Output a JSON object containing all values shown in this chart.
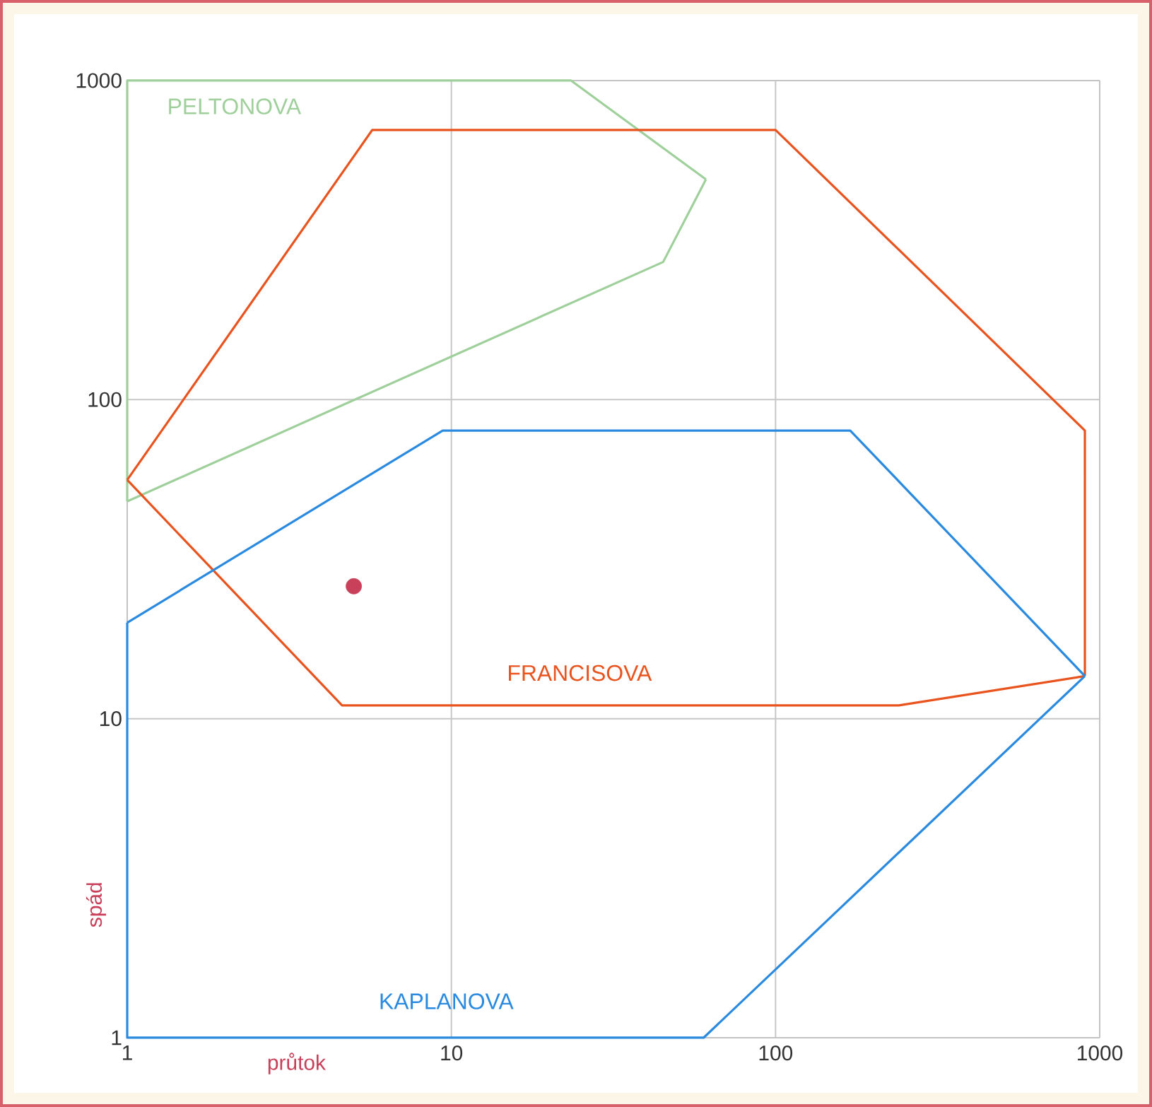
{
  "chart_data": {
    "type": "line",
    "xlabel": "průtok",
    "ylabel": "spád",
    "log": "xy",
    "grid": true,
    "xlim": [
      1,
      1000
    ],
    "ylim": [
      1,
      1000
    ],
    "xticks": [
      1,
      10,
      100,
      1000
    ],
    "yticks": [
      1,
      10,
      100,
      1000
    ],
    "series": [
      {
        "name": "PELTONOVA",
        "color": "#9fd09b",
        "x": [
          1,
          1,
          23.4,
          61
        ],
        "values": [
          48,
          1000,
          1000,
          490
        ]
      },
      {
        "color": "#9fd09b",
        "x": [
          1,
          45,
          61
        ],
        "values": [
          48,
          270,
          490
        ]
      },
      {
        "name": "FRANCISOVA",
        "color": "#e8531e",
        "x": [
          1,
          5.7,
          100,
          900,
          900
        ],
        "values": [
          56,
          700,
          700,
          80,
          13.6
        ]
      },
      {
        "color": "#e8531e",
        "x": [
          1,
          4.6,
          240,
          900
        ],
        "values": [
          56,
          11,
          11,
          13.6
        ]
      },
      {
        "name": "KAPLANOVA",
        "color": "#2a8ae0",
        "x": [
          1,
          9.4,
          170,
          900
        ],
        "values": [
          20,
          80,
          80,
          13.6
        ]
      },
      {
        "color": "#2a8ae0",
        "x": [
          1,
          1,
          60,
          900
        ],
        "values": [
          20,
          1,
          1,
          13.6
        ]
      },
      {
        "type": "scatter",
        "marker": "circle",
        "color": "#c8405a",
        "x": [
          5
        ],
        "values": [
          26
        ]
      }
    ]
  }
}
